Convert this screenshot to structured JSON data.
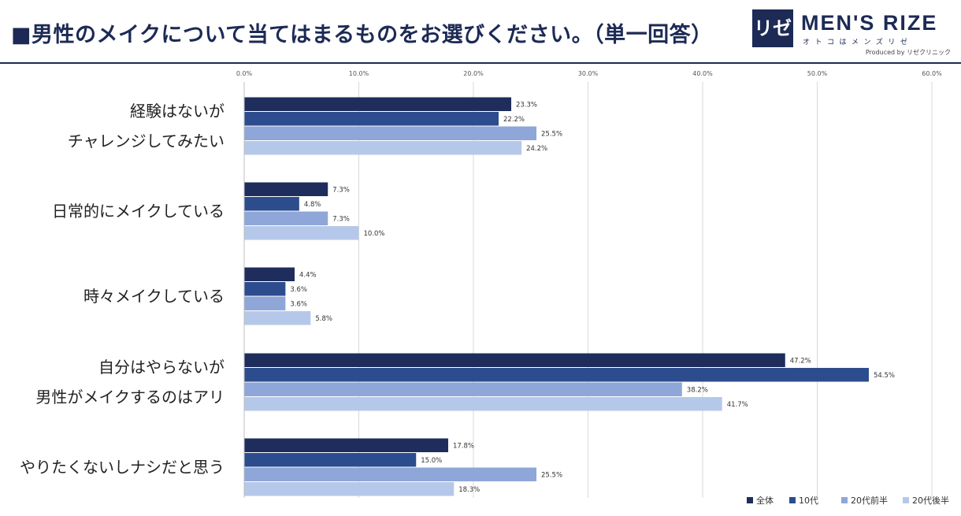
{
  "title": "■男性のメイクについて当てはまるものをお選びください。（単一回答）",
  "logo": {
    "mark": "リゼ",
    "brand": "MEN'S RIZE",
    "sub": "オトコはメンズリゼ",
    "produced": "Produced by リゼクリニック"
  },
  "colors": {
    "zentai": "#1f2d5c",
    "teen": "#2c4c8e",
    "early20": "#8ea6d8",
    "late20": "#b6c8ea",
    "header": "#1c2a55"
  },
  "chart_data": {
    "type": "bar",
    "orientation": "horizontal",
    "title": "■男性のメイクについて当てはまるものをお選びください。（単一回答）",
    "xlim": [
      0,
      60
    ],
    "x_ticks": [
      "0.0%",
      "10.0%",
      "20.0%",
      "30.0%",
      "40.0%",
      "50.0%",
      "60.0%"
    ],
    "grid": true,
    "legend_position": "bottom-right",
    "categories": [
      [
        "経験はないが",
        "チャレンジしてみたい"
      ],
      [
        "日常的にメイクしている"
      ],
      [
        "時々メイクしている"
      ],
      [
        "自分はやらないが",
        "男性がメイクするのはアリ"
      ],
      [
        "やりたくないしナシだと思う"
      ]
    ],
    "series": [
      {
        "name": "全体",
        "color": "#1f2d5c",
        "values": [
          23.3,
          7.3,
          4.4,
          47.2,
          17.8
        ],
        "labels": [
          "23.3%",
          "7.3%",
          "4.4%",
          "47.2%",
          "17.8%"
        ]
      },
      {
        "name": "10代",
        "color": "#2c4c8e",
        "values": [
          22.2,
          4.8,
          3.6,
          54.5,
          15.0
        ],
        "labels": [
          "22.2%",
          "4.8%",
          "3.6%",
          "54.5%",
          "15.0%"
        ]
      },
      {
        "name": "20代前半",
        "color": "#8ea6d8",
        "values": [
          25.5,
          7.3,
          3.6,
          38.2,
          25.5
        ],
        "labels": [
          "25.5%",
          "7.3%",
          "3.6%",
          "38.2%",
          "25.5%"
        ]
      },
      {
        "name": "20代後半",
        "color": "#b6c8ea",
        "values": [
          24.2,
          10.0,
          5.8,
          41.7,
          18.3
        ],
        "labels": [
          "24.2%",
          "10.0%",
          "5.8%",
          "41.7%",
          "18.3%"
        ]
      }
    ]
  }
}
